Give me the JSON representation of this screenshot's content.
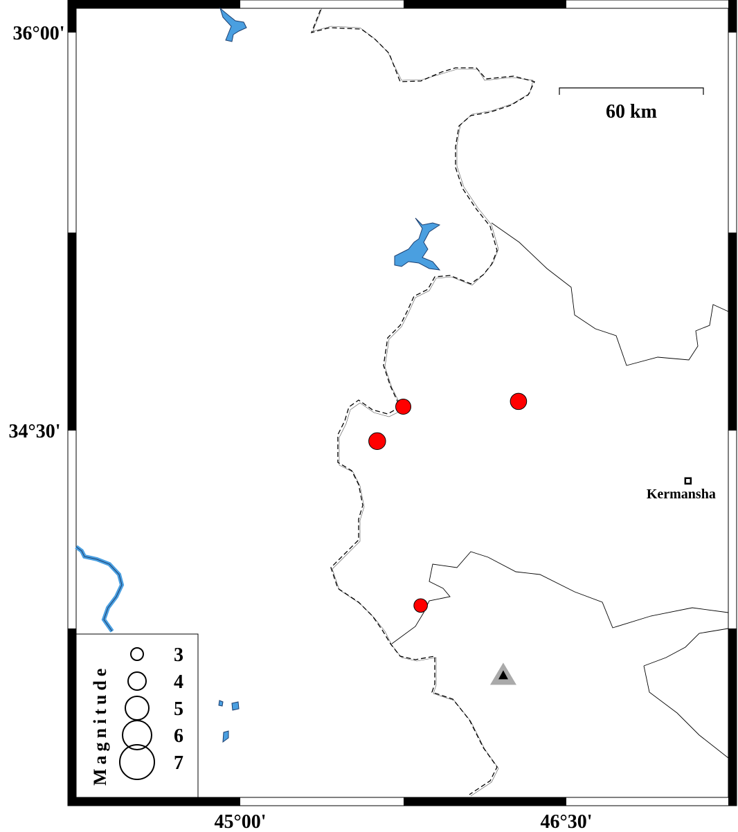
{
  "map": {
    "region": {
      "lon_min": 44.25,
      "lon_max": 47.25,
      "lat_min": 33.12,
      "lat_max": 36.09
    },
    "colors": {
      "water": "#4a9fe0",
      "event": "#ff0000",
      "station": "#aaaaaa",
      "frame": "#000000"
    },
    "y_ticks": [
      {
        "lat": 36.0,
        "label": "36°00'"
      },
      {
        "lat": 34.5,
        "label": "34°30'"
      }
    ],
    "x_ticks": [
      {
        "lon": 45.0,
        "label": "45°00'"
      },
      {
        "lon": 46.5,
        "label": "46°30'"
      }
    ],
    "scale_bar": {
      "label": "60 km"
    },
    "city": {
      "name": "Kermansha",
      "lon": 47.06,
      "lat": 34.31,
      "icon": "square-marker-icon"
    },
    "station": {
      "lon": 46.21,
      "lat": 33.58,
      "icon": "triangle-icon"
    },
    "events": [
      {
        "lon": 45.75,
        "lat": 34.59,
        "mag": 3.5
      },
      {
        "lon": 46.28,
        "lat": 34.61,
        "mag": 3.7
      },
      {
        "lon": 45.63,
        "lat": 34.46,
        "mag": 3.8
      },
      {
        "lon": 45.83,
        "lat": 33.84,
        "mag": 3.2
      }
    ],
    "legend": {
      "title": "Magnitude",
      "entries": [
        {
          "mag": 3,
          "label": "3"
        },
        {
          "mag": 4,
          "label": "4"
        },
        {
          "mag": 5,
          "label": "5"
        },
        {
          "mag": 6,
          "label": "6"
        },
        {
          "mag": 7,
          "label": "7"
        }
      ]
    }
  }
}
